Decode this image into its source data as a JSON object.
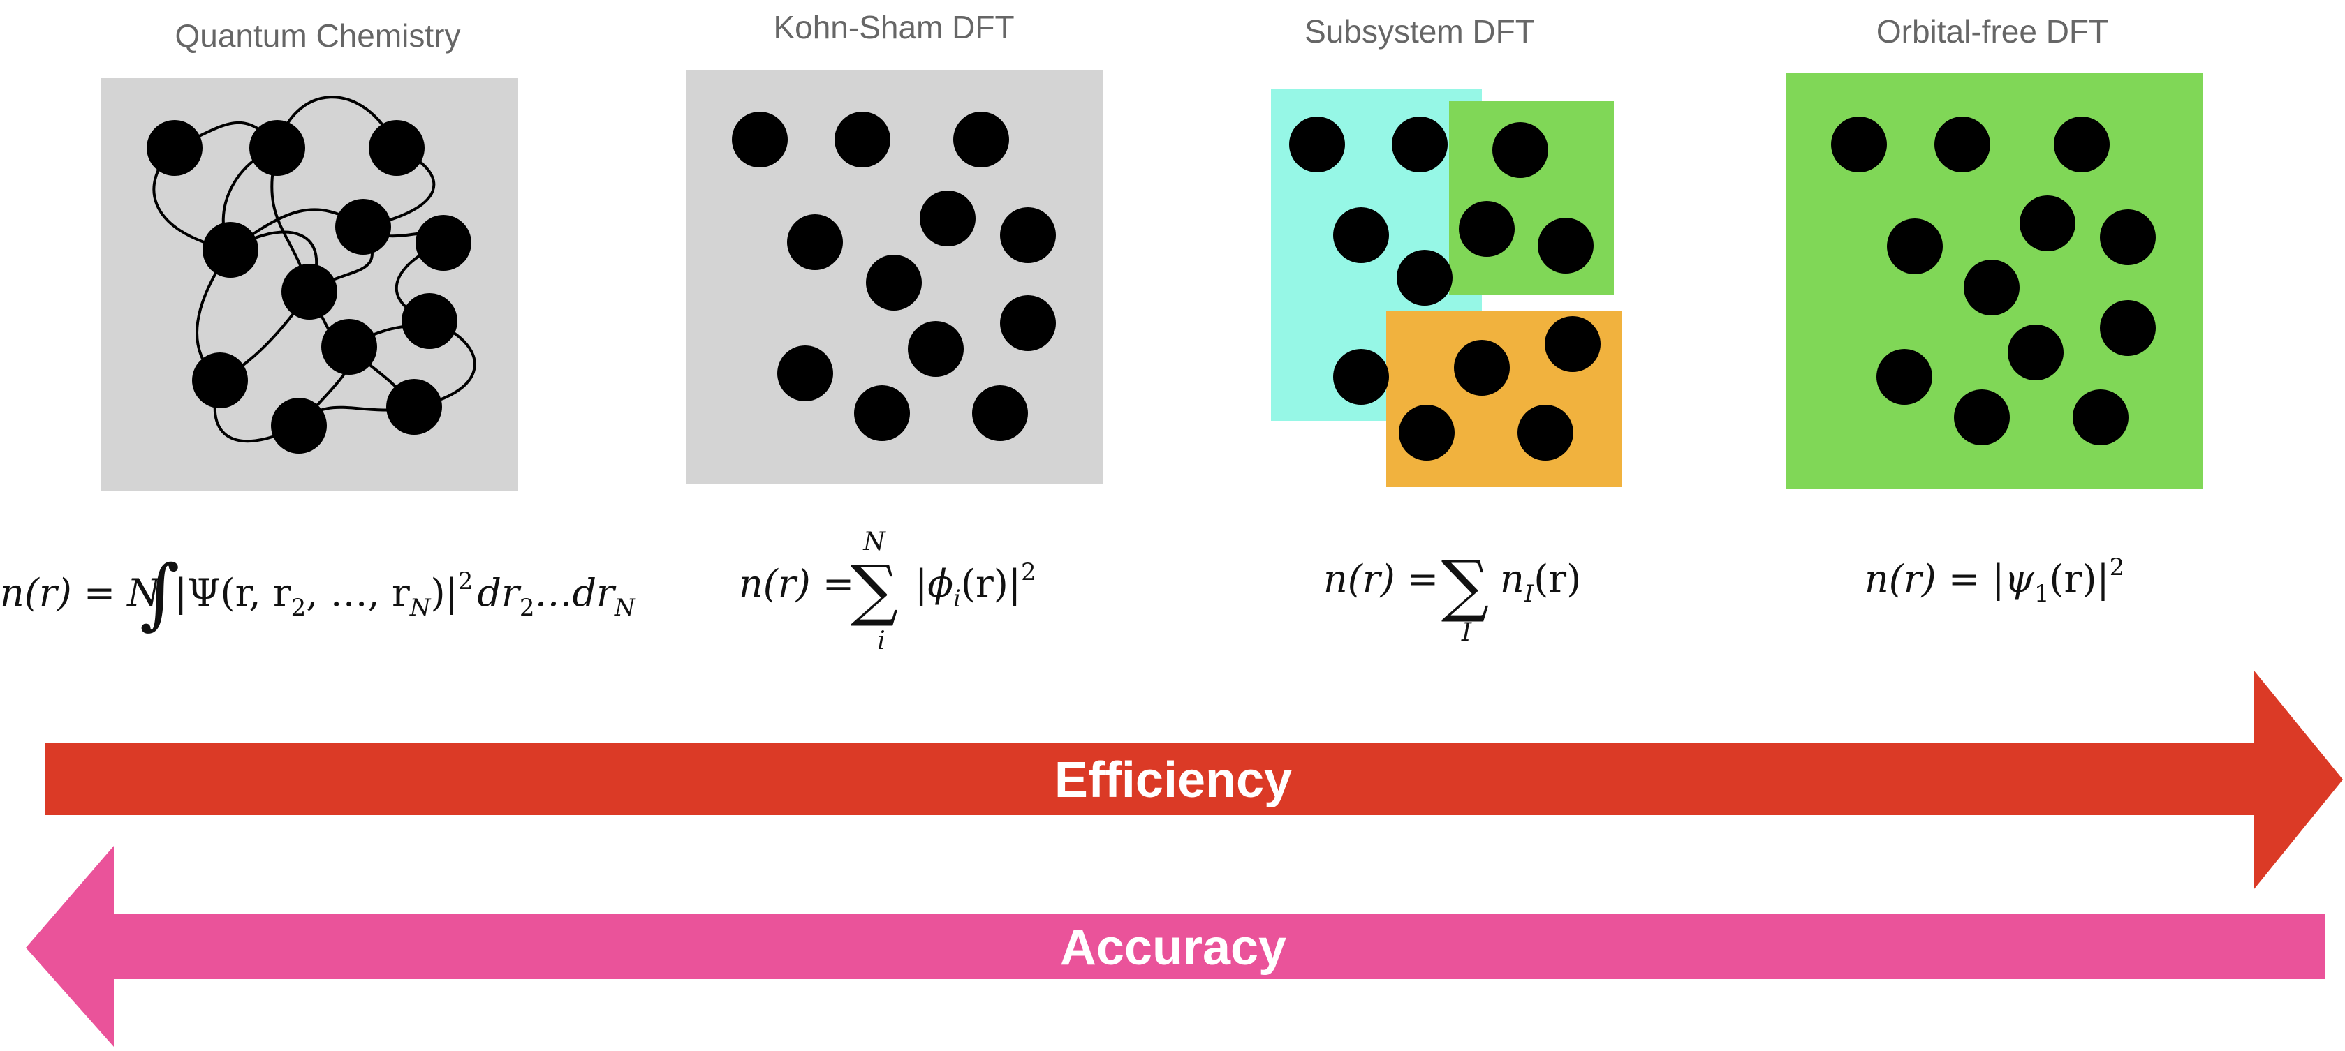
{
  "panels": [
    {
      "title": "Quantum Chemistry",
      "bg": "#d4d4d4"
    },
    {
      "title": "Kohn-Sham DFT",
      "bg": "#d4d4d4"
    },
    {
      "title": "Subsystem DFT",
      "subsystem_colors": [
        "#96f7e6",
        "#80d757",
        "#f1b23e"
      ]
    },
    {
      "title": "Orbital-free DFT",
      "bg": "#80d757"
    }
  ],
  "equations": {
    "qc": {
      "lhs": "n(r) = N",
      "psi": "|Ψ(r, r",
      "sub2": "2",
      "mid": ", …, r",
      "subN": "N",
      "close": ")|",
      "sq": "2",
      "d1": "dr",
      "d1sub": "2",
      "dots": "…dr",
      "d2sub": "N"
    },
    "ks": {
      "lhs": "n(r) =",
      "sum": "∑",
      "upper": "N",
      "lower": "i",
      "body": "|ϕ",
      "sub": "i",
      "tail": "(r)|",
      "sq": "2"
    },
    "sub": {
      "lhs": "n(r) =",
      "sum": "∑",
      "lower": "I",
      "body": "n",
      "sub": "I",
      "tail": "(r)"
    },
    "of": {
      "lhs": "n(r) = |ψ",
      "sub": "1",
      "tail": "(r)|",
      "sq": "2"
    }
  },
  "arrows": {
    "efficiency": {
      "label": "Efficiency",
      "color": "#db3a26",
      "direction": "right"
    },
    "accuracy": {
      "label": "Accuracy",
      "color": "#ea539a",
      "direction": "left"
    }
  },
  "atom_color": "#000000"
}
